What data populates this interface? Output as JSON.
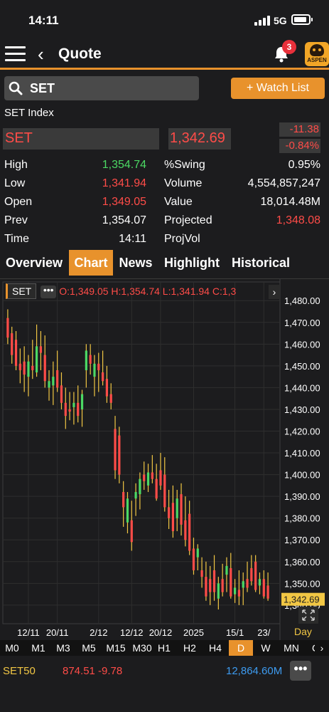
{
  "status_bar": {
    "time": "14:11",
    "network": "5G"
  },
  "header": {
    "back_symbol": "‹",
    "title": "Quote",
    "notification_count": "3",
    "logo_text": "ASPEN"
  },
  "search": {
    "value": "SET",
    "placeholder": ""
  },
  "watch_list_button": "+ Watch List",
  "quote": {
    "index_name": "SET Index",
    "symbol": "SET",
    "last": "1,342.69",
    "change": "-11.38",
    "change_pct": "-0.84%",
    "stats_left": [
      {
        "label": "High",
        "value": "1,354.74",
        "color": "#4cd964"
      },
      {
        "label": "Low",
        "value": "1,341.94",
        "color": "#ff4c48"
      },
      {
        "label": "Open",
        "value": "1,349.05",
        "color": "#ff4c48"
      },
      {
        "label": "Prev",
        "value": "1,354.07",
        "color": "#ffffff"
      },
      {
        "label": "Time",
        "value": "14:11",
        "color": "#ffffff"
      }
    ],
    "stats_right": [
      {
        "label": "%Swing",
        "value": "0.95%",
        "color": "#ffffff"
      },
      {
        "label": "Volume",
        "value": "4,554,857,247",
        "color": "#ffffff"
      },
      {
        "label": "Value",
        "value": "18,014.48M",
        "color": "#ffffff"
      },
      {
        "label": "Projected",
        "value": "1,348.08",
        "color": "#ff4c48"
      },
      {
        "label": "ProjVol",
        "value": "",
        "color": "#ffffff"
      }
    ]
  },
  "tabs": [
    "Overview",
    "Chart",
    "News",
    "Highlight",
    "Historical"
  ],
  "active_tab": "Chart",
  "chart_header": {
    "symbol": "SET",
    "more": "•••",
    "ohlc": "O:1,349.05 H:1,354.74 L:1,341.94 C:1,3",
    "arrow": "›"
  },
  "chart_data": {
    "type": "candlestick",
    "symbol": "SET",
    "interval": "D",
    "ylim": [
      1338,
      1484
    ],
    "y_ticks": [
      "1,480.00",
      "1,470.00",
      "1,460.00",
      "1,450.00",
      "1,440.00",
      "1,430.00",
      "1,420.00",
      "1,410.00",
      "1,400.00",
      "1,390.00",
      "1,380.00",
      "1,370.00",
      "1,360.00",
      "1,350.00",
      "1,340.00"
    ],
    "y_tick_values": [
      1480,
      1470,
      1460,
      1450,
      1440,
      1430,
      1420,
      1410,
      1400,
      1390,
      1380,
      1370,
      1360,
      1350,
      1340
    ],
    "x_labels": [
      {
        "label": "12/11",
        "index": 5
      },
      {
        "label": "20/11",
        "index": 12
      },
      {
        "label": "2/12",
        "index": 22
      },
      {
        "label": "12/12",
        "index": 30
      },
      {
        "label": "20/12",
        "index": 37
      },
      {
        "label": "2025",
        "index": 45
      },
      {
        "label": "15/1",
        "index": 55
      },
      {
        "label": "23/",
        "index": 62
      }
    ],
    "last_price_label": "1,342.69",
    "last_price": 1342.69,
    "candles": [
      [
        1472,
        1476,
        1460,
        1463
      ],
      [
        1465,
        1468,
        1451,
        1455
      ],
      [
        1462,
        1466,
        1448,
        1450
      ],
      [
        1451,
        1458,
        1442,
        1448
      ],
      [
        1452,
        1459,
        1438,
        1446
      ],
      [
        1445,
        1455,
        1436,
        1452
      ],
      [
        1450,
        1462,
        1444,
        1448
      ],
      [
        1447,
        1469,
        1445,
        1459
      ],
      [
        1459,
        1466,
        1448,
        1456
      ],
      [
        1455,
        1464,
        1440,
        1443
      ],
      [
        1440,
        1448,
        1434,
        1443
      ],
      [
        1441,
        1452,
        1432,
        1445
      ],
      [
        1448,
        1457,
        1438,
        1440
      ],
      [
        1441,
        1447,
        1430,
        1433
      ],
      [
        1433,
        1440,
        1421,
        1427
      ],
      [
        1430,
        1438,
        1425,
        1429
      ],
      [
        1431,
        1438,
        1423,
        1433
      ],
      [
        1433,
        1441,
        1424,
        1427
      ],
      [
        1430,
        1439,
        1422,
        1437
      ],
      [
        1448,
        1460,
        1440,
        1457
      ],
      [
        1455,
        1460,
        1446,
        1451
      ],
      [
        1445,
        1455,
        1436,
        1451
      ],
      [
        1451,
        1456,
        1438,
        1448
      ],
      [
        1447,
        1457,
        1441,
        1443
      ],
      [
        1444,
        1450,
        1433,
        1436
      ],
      [
        1437,
        1442,
        1430,
        1433
      ],
      [
        1421,
        1427,
        1398,
        1402
      ],
      [
        1418,
        1422,
        1396,
        1400
      ],
      [
        1392,
        1397,
        1376,
        1385
      ],
      [
        1378,
        1392,
        1373,
        1389
      ],
      [
        1379,
        1388,
        1365,
        1369
      ],
      [
        1389,
        1396,
        1381,
        1392
      ],
      [
        1391,
        1401,
        1384,
        1398
      ],
      [
        1400,
        1406,
        1393,
        1397
      ],
      [
        1395,
        1405,
        1392,
        1401
      ],
      [
        1401,
        1409,
        1396,
        1398
      ],
      [
        1398,
        1405,
        1388,
        1389
      ],
      [
        1402,
        1410,
        1393,
        1395
      ],
      [
        1400,
        1408,
        1383,
        1385
      ],
      [
        1385,
        1393,
        1375,
        1380
      ],
      [
        1387,
        1395,
        1371,
        1374
      ],
      [
        1380,
        1393,
        1374,
        1389
      ],
      [
        1391,
        1396,
        1372,
        1377
      ],
      [
        1379,
        1390,
        1367,
        1370
      ],
      [
        1382,
        1388,
        1363,
        1365
      ],
      [
        1366,
        1371,
        1354,
        1356
      ],
      [
        1362,
        1368,
        1356,
        1366
      ],
      [
        1356,
        1362,
        1348,
        1353
      ],
      [
        1353,
        1360,
        1342,
        1344
      ],
      [
        1352,
        1358,
        1340,
        1346
      ],
      [
        1356,
        1363,
        1342,
        1346
      ],
      [
        1343,
        1353,
        1338,
        1350
      ],
      [
        1352,
        1359,
        1344,
        1346
      ],
      [
        1354,
        1362,
        1346,
        1358
      ],
      [
        1357,
        1364,
        1343,
        1344
      ],
      [
        1345,
        1352,
        1341,
        1348
      ],
      [
        1347,
        1356,
        1340,
        1344
      ],
      [
        1348,
        1355,
        1340,
        1351
      ],
      [
        1352,
        1360,
        1346,
        1348
      ],
      [
        1357,
        1363,
        1349,
        1351
      ],
      [
        1360,
        1363,
        1346,
        1347
      ],
      [
        1349,
        1355,
        1345,
        1352
      ],
      [
        1352,
        1356,
        1343,
        1344
      ],
      [
        1349,
        1355,
        1342,
        1343
      ]
    ]
  },
  "day_label": "Day",
  "timeframes": [
    "M0",
    "M1",
    "M3",
    "M5",
    "M15",
    "M30",
    "H1",
    "H2",
    "H4",
    "D",
    "W",
    "MN",
    "C"
  ],
  "active_timeframe": "D",
  "tf_arrow": "›",
  "ticker": {
    "symbol": "SET50",
    "price": "874.51 -9.78",
    "value": "12,864.60M",
    "more": "•••"
  },
  "colors": {
    "accent": "#e8922c",
    "up": "#4cd964",
    "down": "#ff4c48",
    "price_label_bg": "#f2c744"
  }
}
